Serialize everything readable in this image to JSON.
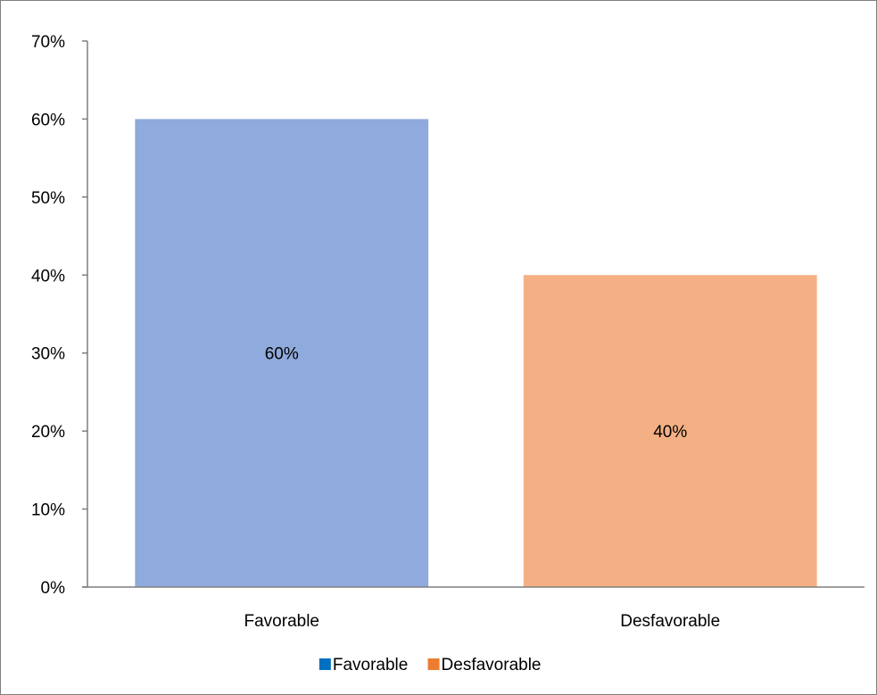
{
  "chart_data": {
    "type": "bar",
    "categories": [
      "Favorable",
      "Desfavorable"
    ],
    "values": [
      60,
      40
    ],
    "value_unit": "%",
    "data_labels": [
      "60%",
      "40%"
    ],
    "ylim": [
      0,
      70
    ],
    "y_ticks": [
      0,
      10,
      20,
      30,
      40,
      50,
      60,
      70
    ],
    "y_tick_labels": [
      "0%",
      "10%",
      "20%",
      "30%",
      "40%",
      "50%",
      "60%",
      "70%"
    ],
    "grid": false,
    "legend_placement": "bottom",
    "legend": [
      "Favorable",
      "Desfavorable"
    ],
    "bar_fill_colors": [
      "#8faadc",
      "#f4b084"
    ],
    "legend_colors": [
      "#0070c0",
      "#ed7d31"
    ],
    "axis_color": "#7f7f7f"
  }
}
